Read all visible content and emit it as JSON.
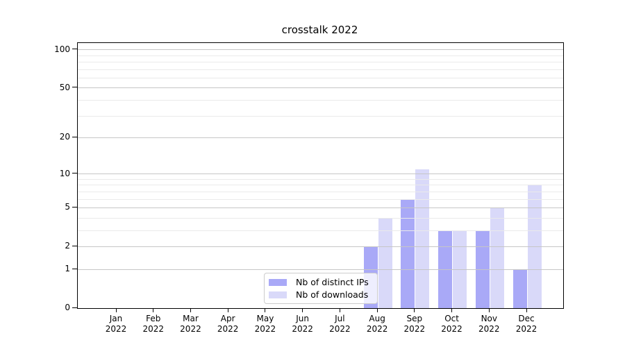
{
  "figure": {
    "background": "#ffffff"
  },
  "chart_data": {
    "type": "bar",
    "title": "crosstalk 2022",
    "x_categories": [
      {
        "month": "Jan",
        "year": "2022"
      },
      {
        "month": "Feb",
        "year": "2022"
      },
      {
        "month": "Mar",
        "year": "2022"
      },
      {
        "month": "Apr",
        "year": "2022"
      },
      {
        "month": "May",
        "year": "2022"
      },
      {
        "month": "Jun",
        "year": "2022"
      },
      {
        "month": "Jul",
        "year": "2022"
      },
      {
        "month": "Aug",
        "year": "2022"
      },
      {
        "month": "Sep",
        "year": "2022"
      },
      {
        "month": "Oct",
        "year": "2022"
      },
      {
        "month": "Nov",
        "year": "2022"
      },
      {
        "month": "Dec",
        "year": "2022"
      }
    ],
    "series": [
      {
        "name": "Nb of distinct IPs",
        "color": "#a9a9f7",
        "values": [
          0,
          0,
          0,
          0,
          0,
          0,
          0,
          2,
          6,
          3,
          3,
          1
        ]
      },
      {
        "name": "Nb of downloads",
        "color": "#d9d9f9",
        "values": [
          0,
          0,
          0,
          0,
          0,
          0,
          0,
          4,
          11,
          3,
          5,
          8
        ]
      }
    ],
    "y_axis": {
      "scale": "log1p",
      "ticks": [
        0,
        1,
        2,
        5,
        10,
        20,
        50,
        100
      ],
      "minor_ticks": [
        3,
        4,
        6,
        7,
        8,
        9,
        30,
        40,
        60,
        70,
        80,
        90
      ],
      "ylim": [
        0,
        113
      ]
    },
    "grid": {
      "major_color": "#c6c6c6",
      "minor_color": "#eaeaea",
      "grid_above_bars": true
    },
    "legend": {
      "position": "lower center"
    }
  }
}
